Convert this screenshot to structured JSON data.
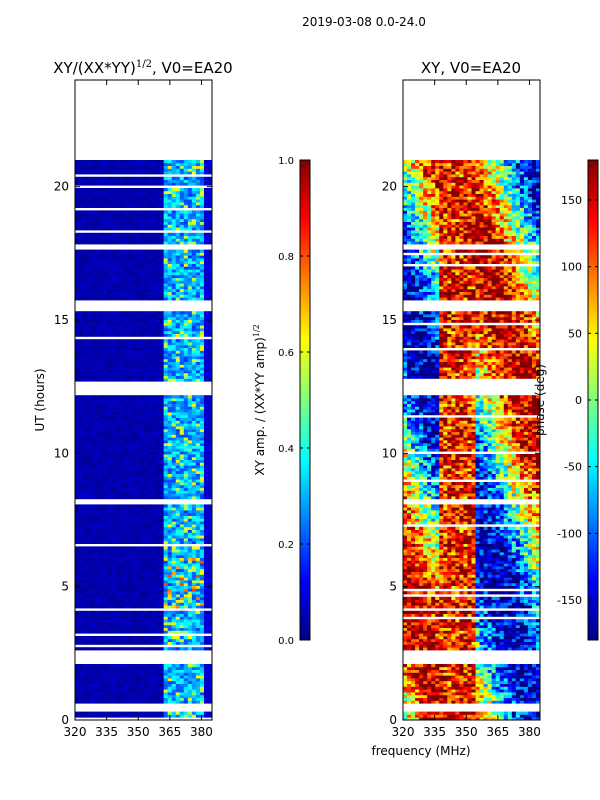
{
  "figure_title": "2019-03-08 0.0-24.0",
  "shared_xlabel": "frequency (MHz)",
  "chart_data": [
    {
      "type": "heatmap",
      "title_main": "XY/(XX*YY)",
      "title_sup": "1/2",
      "title_tail": ", V0=EA20",
      "ylabel": "UT (hours)",
      "xlim": [
        320,
        385
      ],
      "ylim": [
        0,
        24
      ],
      "xticks": [
        320,
        335,
        350,
        365,
        380
      ],
      "yticks": [
        0,
        5,
        10,
        15,
        20
      ],
      "colorbar": {
        "label_main": "XY amp. / (XX*YY amp)",
        "label_sup": "1/2",
        "range": [
          0.0,
          1.0
        ],
        "ticks": [
          "0.0",
          "0.2",
          "0.4",
          "0.6",
          "0.8",
          "1.0"
        ],
        "tick_values": [
          0.0,
          0.2,
          0.4,
          0.6,
          0.8,
          1.0
        ]
      }
    },
    {
      "type": "heatmap",
      "title_main": "XY, V0=EA20",
      "ylabel": "",
      "xlim": [
        320,
        385
      ],
      "ylim": [
        0,
        24
      ],
      "xticks": [
        320,
        335,
        350,
        365,
        380
      ],
      "yticks": [
        0,
        5,
        10,
        15,
        20
      ],
      "colorbar": {
        "label_main": "phase (deg)",
        "range": [
          -180,
          180
        ],
        "ticks": [
          "-150",
          "-100",
          "-50",
          "0",
          "50",
          "100",
          "150"
        ],
        "tick_values": [
          -150,
          -100,
          -50,
          0,
          50,
          100,
          150
        ]
      }
    }
  ],
  "colors": {
    "jet": [
      "#00007f",
      "#0000ff",
      "#007fff",
      "#00ffff",
      "#7fff7f",
      "#ffff00",
      "#ff7f00",
      "#ff0000",
      "#7f0000"
    ]
  }
}
